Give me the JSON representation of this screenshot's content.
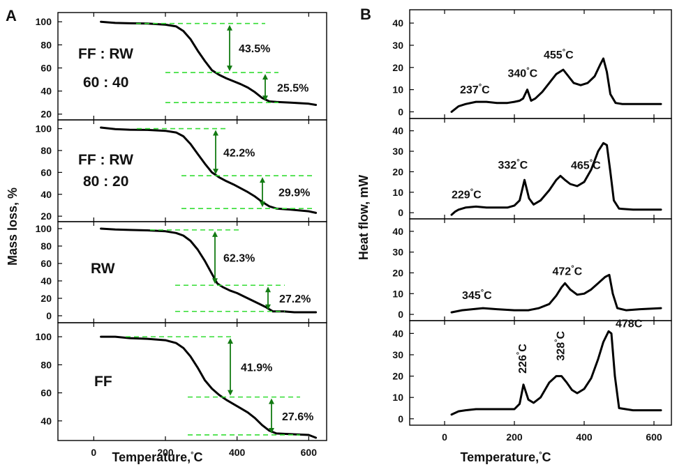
{
  "figure": {
    "panel_a_label": "A",
    "panel_b_label": "B"
  },
  "chart_data": [
    {
      "panel": "A",
      "type": "line",
      "xlabel": "Temperature,",
      "xlabel_unit": "°C",
      "ylabel": "Mass loss, %",
      "xlim": [
        -100,
        650
      ],
      "x_ticks": [
        0,
        200,
        400,
        600
      ],
      "subplots": [
        {
          "sample_lines": [
            "FF : RW",
            "60 : 40"
          ],
          "ylim": [
            15,
            108
          ],
          "y_ticks": [
            20,
            40,
            60,
            80,
            100
          ],
          "x": [
            20,
            60,
            100,
            150,
            200,
            230,
            250,
            270,
            290,
            310,
            330,
            350,
            370,
            390,
            410,
            430,
            450,
            470,
            490,
            510,
            550,
            600,
            620
          ],
          "y": [
            100,
            99,
            98.7,
            98.5,
            97.5,
            96,
            92,
            85,
            75,
            66,
            58,
            54,
            51,
            48.5,
            46,
            43,
            39,
            34,
            31,
            30.5,
            30,
            29,
            28
          ],
          "steps": [
            {
              "label": "43.5%",
              "from": 98.5,
              "to": 57
            },
            {
              "label": "25.5%",
              "from": 56,
              "to": 30
            }
          ]
        },
        {
          "sample_lines": [
            "FF : RW",
            "80 : 20"
          ],
          "ylim": [
            15,
            108
          ],
          "y_ticks": [
            20,
            40,
            60,
            80,
            100
          ],
          "x": [
            20,
            60,
            100,
            150,
            200,
            230,
            250,
            270,
            290,
            310,
            330,
            350,
            370,
            390,
            410,
            430,
            450,
            470,
            490,
            510,
            550,
            600,
            620
          ],
          "y": [
            101,
            99.5,
            99,
            98.8,
            98,
            96.5,
            93,
            86,
            77,
            68,
            60,
            55.5,
            52,
            49,
            45.5,
            42,
            38,
            33,
            29,
            27,
            26,
            24.5,
            23
          ],
          "steps": [
            {
              "label": "42.2%",
              "from": 100,
              "to": 58
            },
            {
              "label": "29.9%",
              "from": 57,
              "to": 27
            }
          ]
        },
        {
          "sample_lines": [
            "RW"
          ],
          "ylim": [
            -8,
            108
          ],
          "y_ticks": [
            0,
            20,
            40,
            60,
            80,
            100
          ],
          "x": [
            20,
            60,
            100,
            150,
            200,
            230,
            250,
            270,
            290,
            310,
            330,
            345,
            360,
            380,
            400,
            420,
            440,
            460,
            480,
            500,
            530,
            560,
            600,
            620
          ],
          "y": [
            100,
            99,
            98.5,
            98,
            97,
            95,
            92,
            86,
            76,
            63,
            48,
            37,
            33,
            29,
            26,
            22,
            18,
            14,
            10,
            5,
            5,
            4,
            4,
            4
          ],
          "steps": [
            {
              "label": "62.3%",
              "from": 98.5,
              "to": 36
            },
            {
              "label": "27.2%",
              "from": 35,
              "to": 5
            }
          ]
        },
        {
          "sample_lines": [
            "FF"
          ],
          "ylim": [
            26,
            110
          ],
          "y_ticks": [
            40,
            60,
            80,
            100
          ],
          "x": [
            20,
            60,
            100,
            150,
            200,
            230,
            250,
            270,
            290,
            310,
            330,
            350,
            370,
            390,
            410,
            430,
            450,
            470,
            490,
            510,
            550,
            600,
            620
          ],
          "y": [
            100,
            100,
            99,
            98.5,
            97.5,
            95.5,
            92,
            86,
            78,
            69,
            63,
            58.5,
            55,
            52,
            49,
            46,
            42,
            37,
            33,
            31,
            30.5,
            30,
            28
          ],
          "steps": [
            {
              "label": "41.9%",
              "from": 100,
              "to": 58
            },
            {
              "label": "27.6%",
              "from": 57,
              "to": 30
            }
          ]
        }
      ]
    },
    {
      "panel": "B",
      "type": "line",
      "xlabel": "Temperature,",
      "xlabel_unit": "°C",
      "ylabel": "Heat flow, mW",
      "xlim": [
        -100,
        650
      ],
      "x_ticks": [
        0,
        200,
        400,
        600
      ],
      "subplots": [
        {
          "ylim": [
            -3,
            46
          ],
          "y_ticks": [
            0,
            10,
            20,
            30,
            40
          ],
          "x": [
            20,
            40,
            60,
            90,
            120,
            150,
            180,
            200,
            215,
            225,
            237,
            248,
            260,
            280,
            300,
            320,
            340,
            355,
            370,
            390,
            410,
            430,
            445,
            455,
            465,
            475,
            490,
            510,
            560,
            620
          ],
          "y": [
            0,
            2.5,
            3.5,
            4.5,
            4.5,
            4,
            4,
            4.5,
            5,
            6,
            10,
            5,
            6,
            9,
            13,
            17,
            19,
            16,
            13,
            12,
            13,
            16,
            21,
            24,
            18,
            8,
            4,
            3.5,
            3.5,
            3.5
          ],
          "peaks": [
            {
              "label": "237",
              "unit": "°C",
              "vertical": false
            },
            {
              "label": "340",
              "unit": "°C",
              "vertical": false
            },
            {
              "label": "455",
              "unit": "°C",
              "vertical": false
            }
          ]
        },
        {
          "ylim": [
            -3,
            46
          ],
          "y_ticks": [
            0,
            10,
            20,
            30,
            40
          ],
          "x": [
            20,
            30,
            40,
            60,
            90,
            120,
            150,
            180,
            200,
            215,
            229,
            242,
            255,
            275,
            300,
            320,
            332,
            345,
            360,
            380,
            400,
            420,
            440,
            455,
            465,
            475,
            485,
            500,
            540,
            620
          ],
          "y": [
            -1,
            0.5,
            1.5,
            2.5,
            3,
            2.5,
            2.5,
            2.5,
            3.5,
            6,
            16,
            7,
            4,
            6,
            11,
            16,
            18,
            16,
            14,
            13,
            15,
            21,
            30,
            34,
            33,
            20,
            6,
            2,
            1.5,
            1.5
          ],
          "peaks": [
            {
              "label": "229",
              "unit": "°C",
              "vertical": false
            },
            {
              "label": "332",
              "unit": "°C",
              "vertical": false
            },
            {
              "label": "465",
              "unit": "°C",
              "vertical": false
            }
          ]
        },
        {
          "ylim": [
            -3,
            46
          ],
          "y_ticks": [
            0,
            10,
            20,
            30,
            40
          ],
          "x": [
            20,
            50,
            80,
            110,
            150,
            200,
            240,
            270,
            300,
            320,
            335,
            345,
            360,
            380,
            400,
            420,
            440,
            460,
            472,
            482,
            495,
            520,
            560,
            620
          ],
          "y": [
            1,
            2,
            2.5,
            3,
            2.5,
            2,
            2,
            3,
            5,
            9,
            13,
            15,
            12,
            9.5,
            10,
            12,
            15,
            18,
            19,
            10,
            3,
            2,
            2.5,
            3
          ],
          "peaks": [
            {
              "label": "345",
              "unit": "°C",
              "vertical": false
            },
            {
              "label": "472",
              "unit": "°C",
              "vertical": false
            }
          ]
        },
        {
          "ylim": [
            -3,
            46
          ],
          "y_ticks": [
            0,
            10,
            20,
            30,
            40
          ],
          "x": [
            20,
            40,
            60,
            90,
            120,
            160,
            200,
            215,
            226,
            240,
            255,
            275,
            300,
            320,
            335,
            350,
            365,
            380,
            400,
            420,
            440,
            455,
            470,
            478,
            488,
            500,
            540,
            620
          ],
          "y": [
            2,
            3.5,
            4,
            4.5,
            4.5,
            4.5,
            4.5,
            7,
            16,
            9,
            7.5,
            10,
            17,
            20,
            20,
            17,
            13.5,
            12,
            14,
            19,
            28,
            36,
            41,
            40,
            20,
            5,
            4,
            4
          ],
          "peaks": [
            {
              "label": "226",
              "unit": "°C",
              "vertical": true
            },
            {
              "label": "328",
              "unit": "°C",
              "vertical": true
            },
            {
              "label": "478C",
              "unit": "",
              "vertical": false
            }
          ]
        }
      ]
    }
  ]
}
